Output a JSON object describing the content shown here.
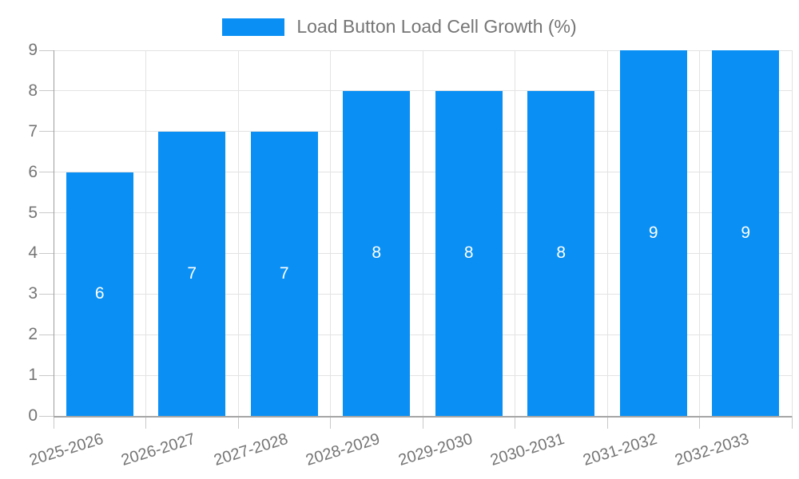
{
  "chart_data": {
    "type": "bar",
    "title": "Load Button Load Cell Growth (%)",
    "categories": [
      "2025-2026",
      "2026-2027",
      "2027-2028",
      "2028-2029",
      "2029-2030",
      "2030-2031",
      "2031-2032",
      "2032-2033"
    ],
    "values": [
      6,
      7,
      7,
      8,
      8,
      8,
      9,
      9
    ],
    "xlabel": "",
    "ylabel": "",
    "ylim": [
      0,
      9
    ],
    "yticks": [
      0,
      1,
      2,
      3,
      4,
      5,
      6,
      7,
      8,
      9
    ],
    "grid": true,
    "legend_position": "top-center",
    "data_labels": true,
    "x_label_rotation_deg": -17,
    "colors": {
      "bar": "#0a90f4",
      "bar_value_label": "#ffffff",
      "axis_text": "#757575",
      "gridline": "#e3e3e3",
      "tick": "#c9c9c9",
      "y_axis_line": "#9e9e9e",
      "x_axis_line": "#a6a6a6",
      "legend_text": "#757575"
    }
  }
}
